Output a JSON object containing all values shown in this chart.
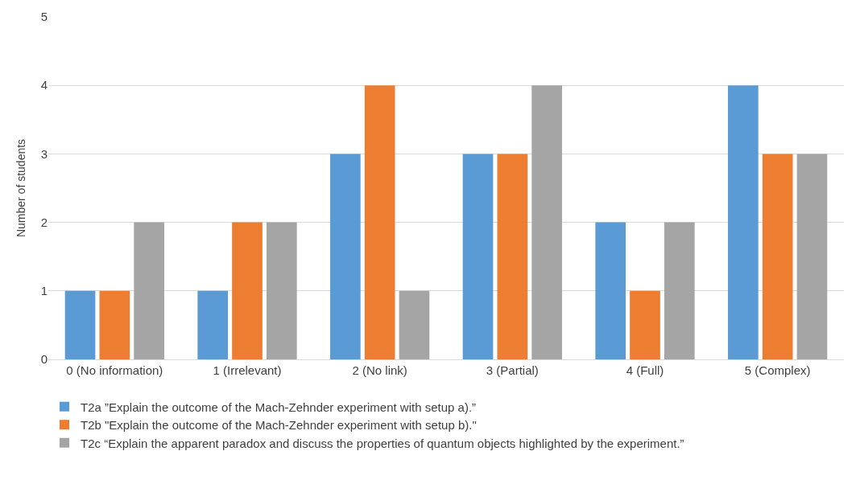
{
  "chart_data": {
    "type": "bar",
    "ylabel": "Number of students",
    "categories": [
      "0 (No information)",
      "1 (Irrelevant)",
      "2 (No link)",
      "3 (Partial)",
      "4 (Full)",
      "5 (Complex)"
    ],
    "series": [
      {
        "name": "T2a ”Explain the outcome of the Mach-Zehnder experiment with setup a).”",
        "color": "#5b9bd5",
        "values": [
          1,
          1,
          3,
          3,
          2,
          4
        ]
      },
      {
        "name": "T2b \"Explain the outcome of the Mach-Zehnder experiment with setup b).\"",
        "color": "#ed7d31",
        "values": [
          1,
          2,
          4,
          3,
          1,
          3
        ]
      },
      {
        "name": "T2c “Explain the apparent paradox and discuss the properties of quantum objects highlighted by the experiment.”",
        "color": "#a5a5a5",
        "values": [
          2,
          2,
          1,
          4,
          2,
          3
        ]
      }
    ],
    "ylim": [
      0,
      5
    ],
    "yticks": [
      0,
      1,
      2,
      3,
      4,
      5
    ],
    "grid": "y",
    "legend": "bottom"
  }
}
